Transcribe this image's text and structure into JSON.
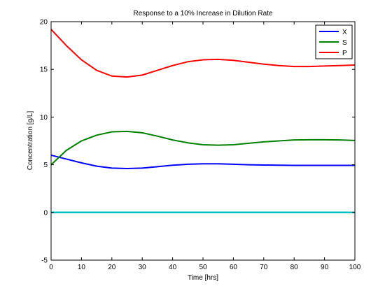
{
  "chart_data": {
    "type": "line",
    "title": "Response to a 10% Increase in Dilution Rate",
    "xlabel": "Time [hrs]",
    "ylabel": "Concentration [g/L]",
    "xlim": [
      0,
      100
    ],
    "ylim": [
      -5,
      20
    ],
    "xticks": [
      0,
      10,
      20,
      30,
      40,
      50,
      60,
      70,
      80,
      90,
      100
    ],
    "yticks": [
      -5,
      0,
      5,
      10,
      15,
      20
    ],
    "grid": false,
    "legend_position": "top-right",
    "series": [
      {
        "name": "X",
        "color": "#0000ff",
        "x": [
          0,
          5,
          10,
          15,
          20,
          25,
          30,
          35,
          40,
          45,
          50,
          55,
          60,
          65,
          70,
          75,
          80,
          85,
          90,
          95,
          100
        ],
        "y": [
          6.0,
          5.6,
          5.2,
          4.85,
          4.65,
          4.6,
          4.65,
          4.8,
          4.95,
          5.05,
          5.1,
          5.1,
          5.05,
          5.0,
          4.97,
          4.95,
          4.93,
          4.93,
          4.93,
          4.93,
          4.93
        ]
      },
      {
        "name": "S",
        "color": "#008000",
        "x": [
          0,
          5,
          10,
          15,
          20,
          25,
          30,
          35,
          40,
          45,
          50,
          55,
          60,
          65,
          70,
          75,
          80,
          85,
          90,
          95,
          100
        ],
        "y": [
          5.0,
          6.5,
          7.5,
          8.1,
          8.45,
          8.5,
          8.35,
          8.0,
          7.6,
          7.3,
          7.1,
          7.05,
          7.1,
          7.25,
          7.4,
          7.5,
          7.6,
          7.62,
          7.62,
          7.6,
          7.55
        ]
      },
      {
        "name": "P",
        "color": "#ff0000",
        "x": [
          0,
          5,
          10,
          15,
          20,
          25,
          30,
          35,
          40,
          45,
          50,
          55,
          60,
          65,
          70,
          75,
          80,
          85,
          90,
          95,
          100
        ],
        "y": [
          19.2,
          17.5,
          16.0,
          14.9,
          14.3,
          14.2,
          14.4,
          14.9,
          15.4,
          15.8,
          16.0,
          16.05,
          15.95,
          15.75,
          15.55,
          15.4,
          15.3,
          15.3,
          15.35,
          15.4,
          15.45
        ]
      },
      {
        "color": "#00bfbf",
        "x": [
          0,
          100
        ],
        "y": [
          0,
          0
        ]
      }
    ]
  }
}
